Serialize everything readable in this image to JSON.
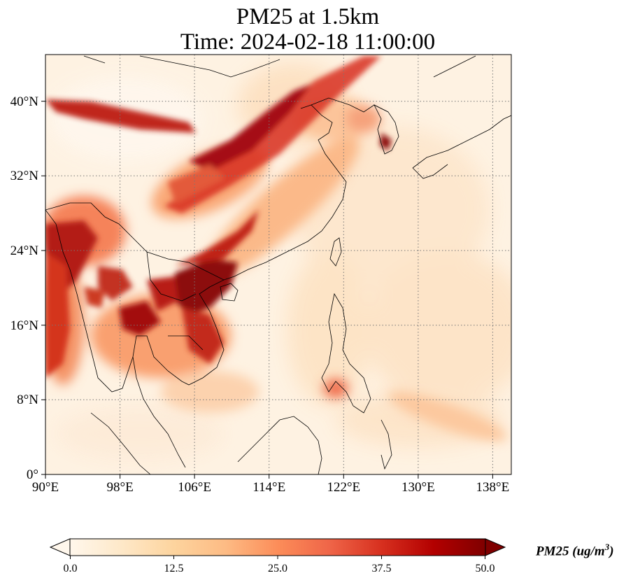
{
  "title_line1": "PM25 at 1.5km",
  "title_line2": "Time: 2024-02-18 11:00:00",
  "map": {
    "lon_range": [
      90,
      140
    ],
    "lat_range": [
      0,
      45
    ],
    "lon_ticks": [
      "90°E",
      "98°E",
      "106°E",
      "114°E",
      "122°E",
      "130°E",
      "138°E"
    ],
    "lat_ticks": [
      "0°",
      "8°N",
      "16°N",
      "24°N",
      "32°N",
      "40°N"
    ],
    "gridlines": "dotted"
  },
  "colorbar": {
    "label": "PM25 (ug/m",
    "label_sup": "3",
    "label_close": ")",
    "ticks": [
      "0.0",
      "12.5",
      "25.0",
      "37.5",
      "50.0"
    ],
    "colormap": "OrRd",
    "extend": "both",
    "colors": [
      "#fff7ec",
      "#fee8c8",
      "#fdd49e",
      "#fdbb84",
      "#fc8d59",
      "#ef6548",
      "#d7301f",
      "#b30000",
      "#7f0000"
    ]
  }
}
